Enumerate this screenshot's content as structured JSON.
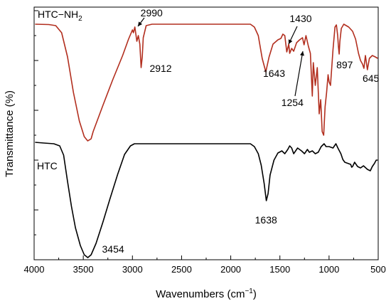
{
  "chart_data": {
    "type": "line",
    "title": "",
    "xlabel": "Wavenumbers (cm",
    "xlabel_sup": "−1",
    "xlabel_close": ")",
    "ylabel": "Transmittance (%)",
    "xlim": [
      4000,
      500
    ],
    "x_reversed": true,
    "x_ticks": [
      "4000",
      "3500",
      "3000",
      "2500",
      "2000",
      "1500",
      "1000",
      "500"
    ],
    "y_ticks_labeled": false,
    "grid": false,
    "series": [
      {
        "name": "HTC−NH",
        "name_sub": "2",
        "color": "#b22e1e",
        "points": [
          [
            3990,
            14
          ],
          [
            3850,
            14.5
          ],
          [
            3780,
            16
          ],
          [
            3720,
            26
          ],
          [
            3660,
            60
          ],
          [
            3600,
            110
          ],
          [
            3540,
            150
          ],
          [
            3490,
            172
          ],
          [
            3455,
            178
          ],
          [
            3420,
            175
          ],
          [
            3400,
            165
          ],
          [
            3300,
            128
          ],
          [
            3200,
            92
          ],
          [
            3100,
            58
          ],
          [
            3040,
            35
          ],
          [
            3000,
            22
          ],
          [
            2990,
            26
          ],
          [
            2975,
            18
          ],
          [
            2955,
            38
          ],
          [
            2940,
            30
          ],
          [
            2925,
            42
          ],
          [
            2912,
            75
          ],
          [
            2900,
            60
          ],
          [
            2890,
            33
          ],
          [
            2860,
            16
          ],
          [
            2800,
            14
          ],
          [
            2500,
            14
          ],
          [
            2200,
            14
          ],
          [
            1850,
            14
          ],
          [
            1800,
            14
          ],
          [
            1760,
            18
          ],
          [
            1720,
            30
          ],
          [
            1680,
            62
          ],
          [
            1643,
            81
          ],
          [
            1610,
            60
          ],
          [
            1570,
            42
          ],
          [
            1520,
            36
          ],
          [
            1490,
            34
          ],
          [
            1470,
            28
          ],
          [
            1450,
            30
          ],
          [
            1430,
            53
          ],
          [
            1410,
            42
          ],
          [
            1400,
            55
          ],
          [
            1380,
            48
          ],
          [
            1360,
            52
          ],
          [
            1330,
            40
          ],
          [
            1300,
            36
          ],
          [
            1270,
            33
          ],
          [
            1254,
            43
          ],
          [
            1235,
            30
          ],
          [
            1210,
            45
          ],
          [
            1190,
            55
          ],
          [
            1170,
            115
          ],
          [
            1160,
            68
          ],
          [
            1140,
            100
          ],
          [
            1120,
            75
          ],
          [
            1100,
            140
          ],
          [
            1085,
            120
          ],
          [
            1070,
            165
          ],
          [
            1055,
            170
          ],
          [
            1040,
            130
          ],
          [
            1025,
            110
          ],
          [
            1010,
            85
          ],
          [
            1000,
            95
          ],
          [
            985,
            100
          ],
          [
            960,
            50
          ],
          [
            940,
            18
          ],
          [
            925,
            15
          ],
          [
            912,
            30
          ],
          [
            905,
            45
          ],
          [
            897,
            56
          ],
          [
            890,
            38
          ],
          [
            875,
            20
          ],
          [
            850,
            14
          ],
          [
            800,
            18
          ],
          [
            760,
            24
          ],
          [
            730,
            35
          ],
          [
            700,
            55
          ],
          [
            680,
            65
          ],
          [
            660,
            70
          ],
          [
            645,
            76
          ],
          [
            630,
            58
          ],
          [
            610,
            78
          ],
          [
            590,
            62
          ],
          [
            560,
            58
          ],
          [
            530,
            60
          ],
          [
            505,
            62
          ]
        ]
      },
      {
        "name": "HTC",
        "color": "#000000",
        "points": [
          [
            3990,
            180
          ],
          [
            3900,
            181
          ],
          [
            3800,
            182
          ],
          [
            3740,
            185
          ],
          [
            3700,
            198
          ],
          [
            3660,
            235
          ],
          [
            3620,
            270
          ],
          [
            3580,
            300
          ],
          [
            3530,
            325
          ],
          [
            3490,
            338
          ],
          [
            3454,
            342
          ],
          [
            3420,
            338
          ],
          [
            3370,
            322
          ],
          [
            3300,
            292
          ],
          [
            3230,
            260
          ],
          [
            3150,
            225
          ],
          [
            3080,
            197
          ],
          [
            3020,
            185
          ],
          [
            2980,
            182
          ],
          [
            2900,
            182
          ],
          [
            2600,
            182
          ],
          [
            2200,
            182
          ],
          [
            1850,
            182
          ],
          [
            1800,
            182
          ],
          [
            1760,
            186
          ],
          [
            1720,
            196
          ],
          [
            1690,
            212
          ],
          [
            1660,
            238
          ],
          [
            1638,
            262
          ],
          [
            1620,
            252
          ],
          [
            1600,
            226
          ],
          [
            1560,
            205
          ],
          [
            1520,
            195
          ],
          [
            1480,
            192
          ],
          [
            1450,
            196
          ],
          [
            1420,
            190
          ],
          [
            1400,
            185
          ],
          [
            1380,
            188
          ],
          [
            1360,
            196
          ],
          [
            1320,
            188
          ],
          [
            1280,
            192
          ],
          [
            1250,
            196
          ],
          [
            1220,
            190
          ],
          [
            1200,
            194
          ],
          [
            1170,
            192
          ],
          [
            1140,
            196
          ],
          [
            1110,
            194
          ],
          [
            1080,
            186
          ],
          [
            1050,
            182
          ],
          [
            1030,
            186
          ],
          [
            1000,
            186
          ],
          [
            960,
            188
          ],
          [
            930,
            182
          ],
          [
            910,
            188
          ],
          [
            880,
            196
          ],
          [
            860,
            204
          ],
          [
            840,
            208
          ],
          [
            800,
            210
          ],
          [
            780,
            211
          ],
          [
            770,
            215
          ],
          [
            760,
            214
          ],
          [
            740,
            208
          ],
          [
            710,
            214
          ],
          [
            680,
            216
          ],
          [
            650,
            213
          ],
          [
            610,
            218
          ],
          [
            580,
            220
          ],
          [
            560,
            214
          ],
          [
            540,
            210
          ],
          [
            520,
            205
          ],
          [
            505,
            205
          ]
        ]
      }
    ],
    "annotations": [
      {
        "text": "2990",
        "wn": 2990
      },
      {
        "text": "2912",
        "wn": 2912
      },
      {
        "text": "1430",
        "wn": 1430
      },
      {
        "text": "1643",
        "wn": 1643
      },
      {
        "text": "1254",
        "wn": 1254
      },
      {
        "text": "897",
        "wn": 897
      },
      {
        "text": "645",
        "wn": 645
      },
      {
        "text": "3454",
        "wn": 3454
      },
      {
        "text": "1638",
        "wn": 1638
      }
    ]
  }
}
